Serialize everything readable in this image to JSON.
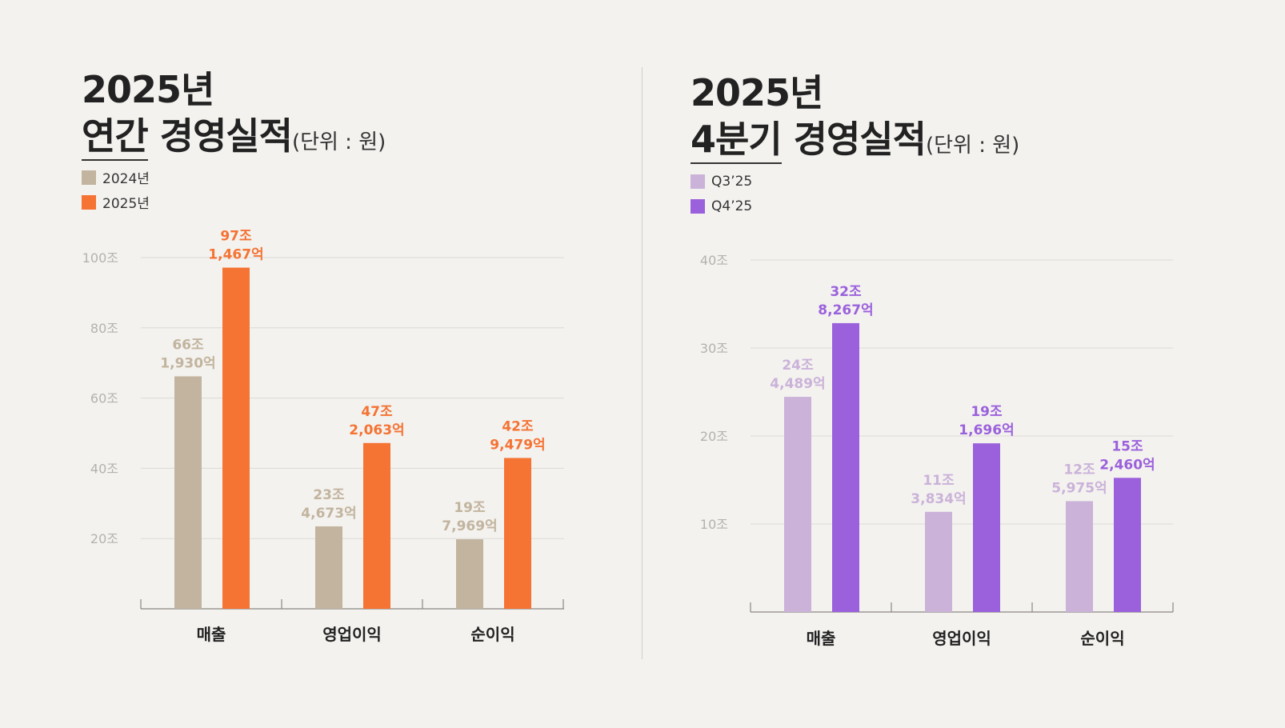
{
  "chart_data": [
    {
      "type": "bar",
      "title_line1": "2025년",
      "title_highlight": "연간",
      "title_rest": "경영실적",
      "unit_label": "(단위 : 원)",
      "categories": [
        "매출",
        "영업이익",
        "순이익"
      ],
      "series": [
        {
          "name": "2024년",
          "color": "#c2b49e",
          "values": [
            66.193,
            23.4673,
            19.7969
          ],
          "labels": [
            [
              "66조",
              "1,930억"
            ],
            [
              "23조",
              "4,673억"
            ],
            [
              "19조",
              "7,969억"
            ]
          ]
        },
        {
          "name": "2025년",
          "color": "#f57333",
          "values": [
            97.1467,
            47.2063,
            42.9479
          ],
          "labels": [
            [
              "97조",
              "1,467억"
            ],
            [
              "47조",
              "2,063억"
            ],
            [
              "42조",
              "9,479억"
            ]
          ]
        }
      ],
      "ylim": [
        0,
        100
      ],
      "yticks": [
        20,
        40,
        60,
        80,
        100
      ],
      "ytick_labels": [
        "20조",
        "40조",
        "60조",
        "80조",
        "100조"
      ],
      "grid": true,
      "legend_position": "top-left"
    },
    {
      "type": "bar",
      "title_line1": "2025년",
      "title_highlight": "4분기",
      "title_rest": "경영실적",
      "unit_label": "(단위 : 원)",
      "categories": [
        "매출",
        "영업이익",
        "순이익"
      ],
      "series": [
        {
          "name": "Q3’25",
          "color": "#cbb2d9",
          "values": [
            24.4489,
            11.3834,
            12.5975
          ],
          "labels": [
            [
              "24조",
              "4,489억"
            ],
            [
              "11조",
              "3,834억"
            ],
            [
              "12조",
              "5,975억"
            ]
          ]
        },
        {
          "name": "Q4’25",
          "color": "#9b61dc",
          "values": [
            32.8267,
            19.1696,
            15.246
          ],
          "labels": [
            [
              "32조",
              "8,267억"
            ],
            [
              "19조",
              "1,696억"
            ],
            [
              "15조",
              "2,460억"
            ]
          ]
        }
      ],
      "ylim": [
        0,
        40
      ],
      "yticks": [
        10,
        20,
        30,
        40
      ],
      "ytick_labels": [
        "10조",
        "20조",
        "30조",
        "40조"
      ],
      "grid": true,
      "legend_position": "top-left"
    }
  ]
}
